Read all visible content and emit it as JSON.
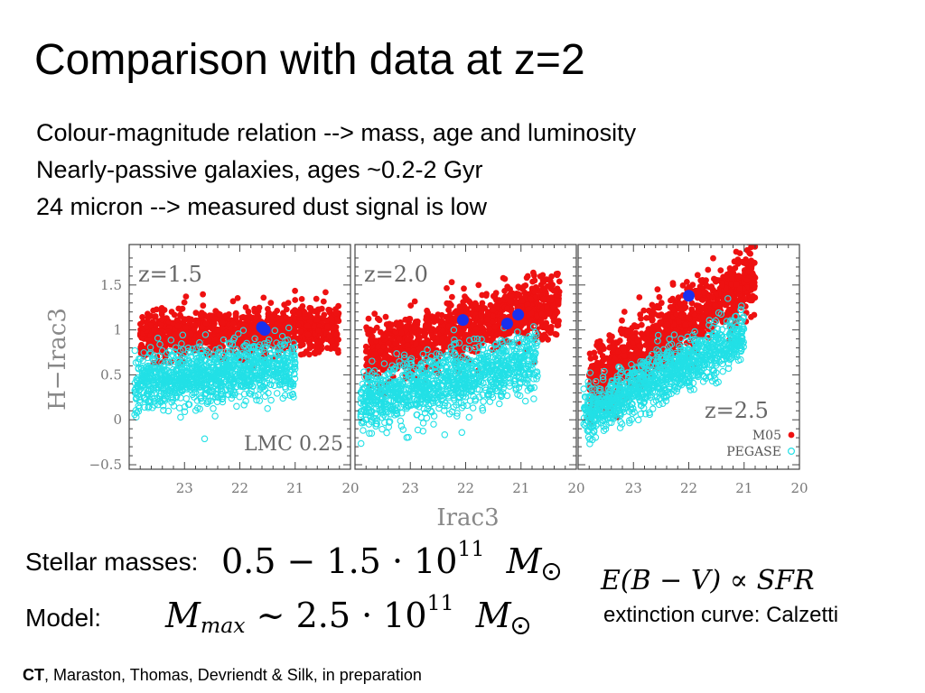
{
  "slide": {
    "title": "Comparison with data at z=2",
    "bullets": [
      "Colour-magnitude relation --> mass, age and luminosity",
      "Nearly-passive galaxies, ages ~0.2-2 Gyr",
      "24 micron --> measured dust signal is low"
    ]
  },
  "chart_data": {
    "type": "scatter",
    "xlabel": "Irac3",
    "ylabel": "H−Irac3",
    "xlim": [
      24.0,
      20.0
    ],
    "ylim": [
      -0.55,
      1.95
    ],
    "xticks": [
      "23",
      "22",
      "21",
      "20"
    ],
    "yticks": [
      "−0.5",
      "0",
      "0.5",
      "1",
      "1.5"
    ],
    "series_styles": [
      {
        "key": "model_red",
        "label": "M05",
        "color": "#ee1111",
        "marker": "filled-circle"
      },
      {
        "key": "model_cyan",
        "label": "PEGASE",
        "color": "#22e0e6",
        "marker": "open-circle"
      },
      {
        "key": "data",
        "label": "",
        "color": "#1830ee",
        "marker": "large-filled-circle"
      }
    ],
    "panels": [
      {
        "label": "z=1.5",
        "note": "LMC  0.25",
        "red_band": {
          "x_range": [
            23.8,
            20.2
          ],
          "y_center": [
            0.95,
            1.0
          ],
          "y_spread": 0.13
        },
        "cyan_band": {
          "x_range": [
            23.9,
            21.0
          ],
          "y_center": [
            0.42,
            0.6
          ],
          "y_spread": 0.16
        },
        "data_points": [
          {
            "x": 21.6,
            "y": 1.03
          },
          {
            "x": 21.55,
            "y": 1.0
          }
        ]
      },
      {
        "label": "z=2.0",
        "note": "",
        "red_band": {
          "x_range": [
            23.8,
            20.3
          ],
          "y_center": [
            0.7,
            1.3
          ],
          "y_spread": 0.17
        },
        "cyan_band": {
          "x_range": [
            23.9,
            20.7
          ],
          "y_center": [
            0.2,
            0.65
          ],
          "y_spread": 0.17
        },
        "data_points": [
          {
            "x": 22.05,
            "y": 1.11
          },
          {
            "x": 21.25,
            "y": 1.07
          },
          {
            "x": 21.05,
            "y": 1.17
          }
        ]
      },
      {
        "label": "z=2.5",
        "note": "",
        "legend": [
          "M05",
          "PEGASE"
        ],
        "red_band": {
          "x_range": [
            23.8,
            20.8
          ],
          "y_center": [
            0.4,
            1.6
          ],
          "y_spread": 0.18
        },
        "cyan_band": {
          "x_range": [
            23.9,
            21.0
          ],
          "y_center": [
            0.05,
            0.95
          ],
          "y_spread": 0.15
        },
        "data_points": [
          {
            "x": 22.0,
            "y": 1.38
          }
        ]
      }
    ]
  },
  "masses": {
    "label": "Stellar masses:",
    "eq_coeff": "0.5 − 1.5 · 10",
    "eq_exp": "11",
    "eq_unit": "M"
  },
  "model": {
    "label": "Model:",
    "eq_var": "M",
    "eq_sub": "max",
    "eq_rest": " ∼ 2.5 · 10",
    "eq_exp": "11",
    "eq_unit": "M"
  },
  "dust": {
    "eq": "E(B − V) ∝ SFR",
    "extinction": "extinction curve: Calzetti"
  },
  "credit": {
    "bold": "CT",
    "rest": ", Maraston, Thomas, Devriendt & Silk, in preparation"
  }
}
